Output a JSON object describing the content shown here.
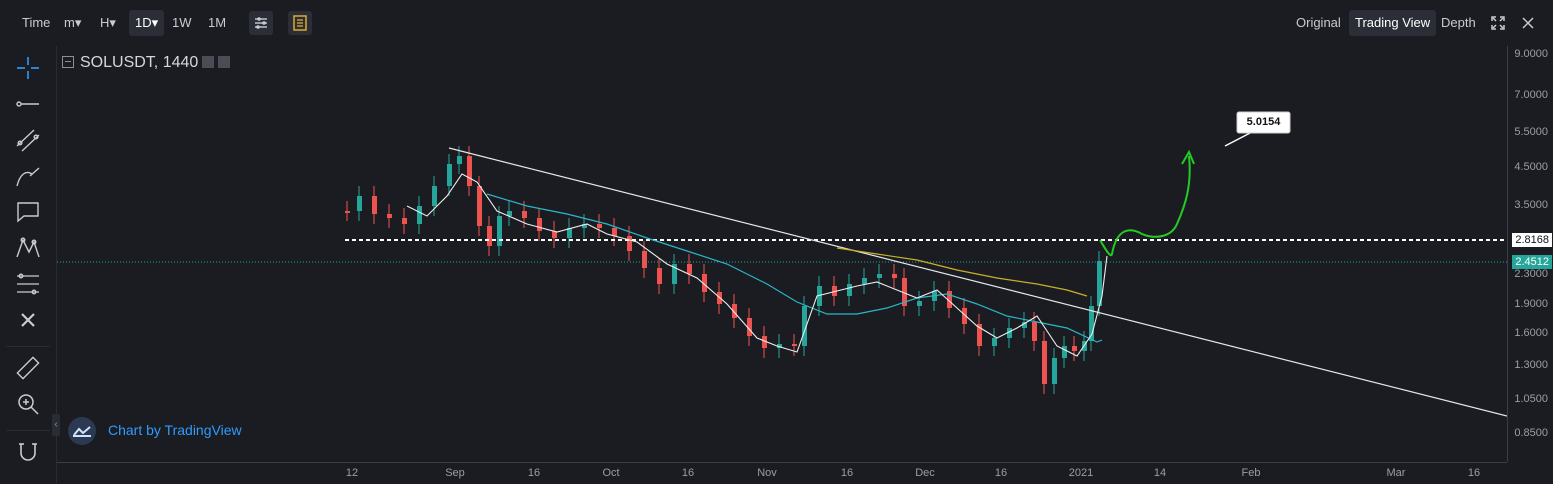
{
  "toolbar": {
    "time_label": "Time",
    "minute_label": "m▾",
    "hour_label": "H▾",
    "day_label": "1D▾",
    "week_label": "1W",
    "month_label": "1M",
    "original_label": "Original",
    "trading_view_label": "Trading View",
    "depth_label": "Depth"
  },
  "legend": {
    "symbol": "SOLUSDT, 1440"
  },
  "watermark": {
    "text": "Chart by TradingView"
  },
  "yaxis": {
    "ticks": [
      "9.0000",
      "7.0000",
      "5.5000",
      "4.5000",
      "3.5000",
      "2.3000",
      "1.9000",
      "1.6000",
      "1.3000",
      "1.0500",
      "0.8500"
    ],
    "tag_level": "2.8168",
    "tag_last": "2.4512"
  },
  "xaxis": {
    "ticks": [
      "12",
      "Sep",
      "16",
      "Oct",
      "16",
      "Nov",
      "16",
      "Dec",
      "16",
      "2021",
      "14",
      "Feb",
      "Mar",
      "16"
    ]
  },
  "annotation": {
    "label": "5.0154"
  },
  "colors": {
    "up": "#26a69a",
    "down": "#ef5350",
    "level_tag": "#ffffff",
    "last_price_tag": "#26a69a",
    "arrow": "#22cc22"
  },
  "chart_data": {
    "type": "candlestick",
    "last_price": 2.4512,
    "level": 2.8168,
    "target": 5.0154
  }
}
